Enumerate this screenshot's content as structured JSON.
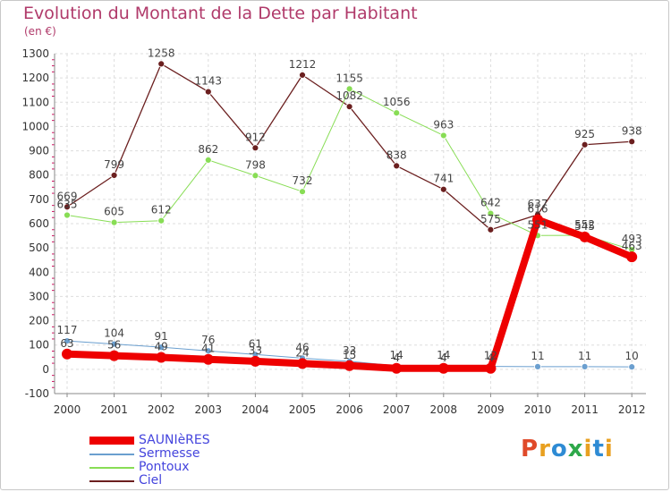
{
  "title": "Evolution du Montant de la Dette par Habitant",
  "subtitle": "(en €)",
  "logo_text": "Proxiti",
  "chart_data": {
    "type": "line",
    "x": [
      "2000",
      "2001",
      "2002",
      "2003",
      "2004",
      "2005",
      "2006",
      "2007",
      "2008",
      "2009",
      "2010",
      "2011",
      "2012"
    ],
    "y_ticks": [
      -100,
      0,
      100,
      200,
      300,
      400,
      500,
      600,
      700,
      800,
      900,
      1000,
      1100,
      1200,
      1300
    ],
    "ylim": [
      -100,
      1300
    ],
    "grid": true,
    "legend_position": "bottom-left",
    "series": [
      {
        "name": "SAUNIèRES",
        "color": "#ee0000",
        "values": [
          63,
          56,
          49,
          41,
          33,
          24,
          15,
          4,
          4,
          4,
          616,
          545,
          463
        ],
        "labels": [
          "63",
          "56",
          "49",
          "41",
          "33",
          "24",
          "15",
          "4",
          "4",
          "4",
          "616",
          "545",
          "463"
        ]
      },
      {
        "name": "Sermesse",
        "color": "#6b9fcf",
        "values": [
          117,
          104,
          91,
          76,
          61,
          46,
          33,
          14,
          14,
          12,
          11,
          11,
          10
        ],
        "labels": [
          "117",
          "104",
          "91",
          "76",
          "61",
          "46",
          "33",
          "14",
          "14",
          "12",
          "11",
          "11",
          "10"
        ]
      },
      {
        "name": "Pontoux",
        "color": "#88dd55",
        "values": [
          635,
          605,
          612,
          862,
          798,
          732,
          1155,
          1056,
          963,
          642,
          551,
          552,
          493
        ],
        "labels": [
          "635",
          "605",
          "612",
          "862",
          "798",
          "732",
          "1155",
          "1056",
          "963",
          "642",
          "551",
          "552",
          "493"
        ]
      },
      {
        "name": "Ciel",
        "color": "#6b1f1f",
        "values": [
          669,
          799,
          1258,
          1143,
          912,
          1212,
          1082,
          838,
          741,
          575,
          637,
          925,
          938
        ],
        "labels": [
          "669",
          "799",
          "1258",
          "1143",
          "912",
          "1212",
          "1082",
          "838",
          "741",
          "575",
          "637",
          "925",
          "938"
        ]
      }
    ]
  }
}
